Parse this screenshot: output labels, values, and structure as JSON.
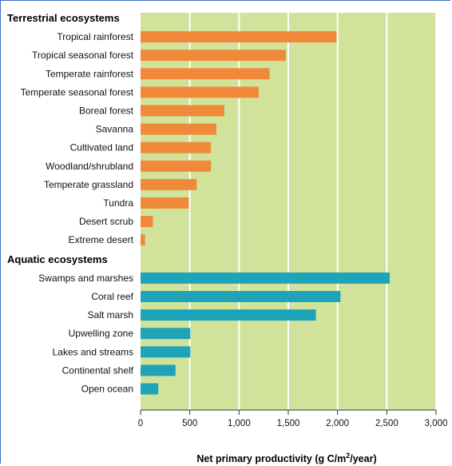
{
  "chart_data": {
    "type": "bar",
    "orientation": "horizontal",
    "groups": [
      {
        "name": "Terrestrial ecosystems",
        "color": "#f08a3a",
        "categories": [
          "Tropical rainforest",
          "Tropical seasonal forest",
          "Temperate rainforest",
          "Temperate seasonal forest",
          "Boreal forest",
          "Savanna",
          "Cultivated land",
          "Woodland/shrubland",
          "Temperate grassland",
          "Tundra",
          "Desert scrub",
          "Extreme desert"
        ],
        "values": [
          1990,
          1475,
          1310,
          1200,
          850,
          770,
          715,
          715,
          570,
          490,
          125,
          45
        ]
      },
      {
        "name": "Aquatic ecosystems",
        "color": "#1fa3b8",
        "categories": [
          "Swamps and marshes",
          "Coral reef",
          "Salt marsh",
          "Upwelling zone",
          "Lakes and streams",
          "Continental shelf",
          "Open ocean"
        ],
        "values": [
          2530,
          2030,
          1780,
          505,
          505,
          355,
          180
        ]
      }
    ],
    "xlabel_main": "Net primary productivity (g C/m",
    "xlabel_sup": "2",
    "xlabel_end": "/year)",
    "xlim": [
      0,
      3000
    ],
    "xticks": [
      0,
      500,
      1000,
      1500,
      2000,
      2500,
      3000
    ],
    "xtick_labels": [
      "0",
      "500",
      "1,000",
      "1,500",
      "2,000",
      "2,500",
      "3,000"
    ],
    "grid": true,
    "background_color": "#d1e39a",
    "grid_color": "#ffffff"
  }
}
